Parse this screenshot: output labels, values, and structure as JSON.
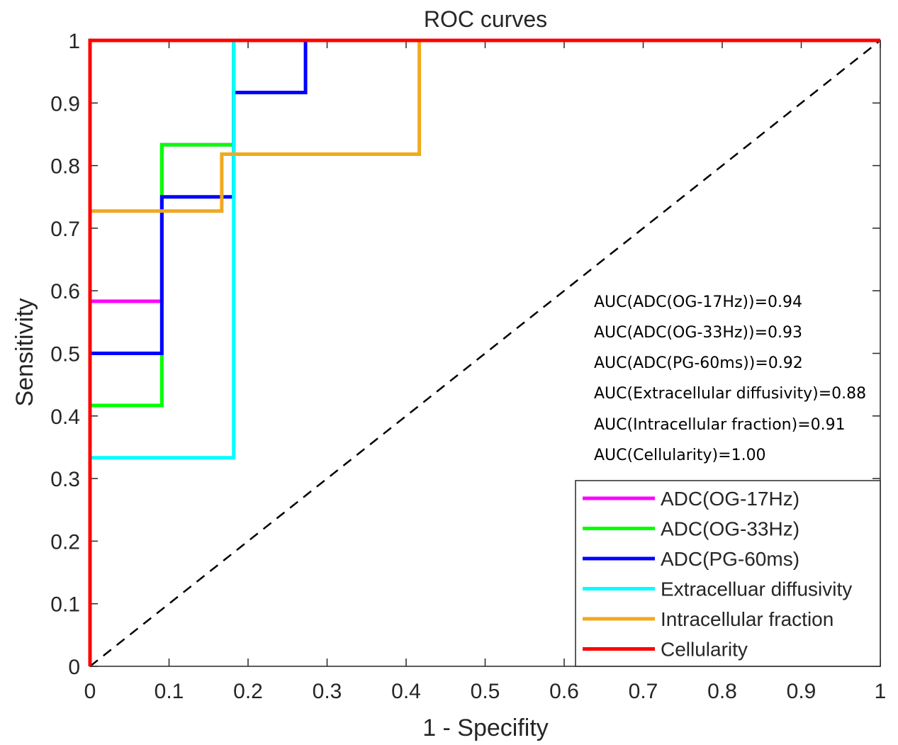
{
  "chart_data": {
    "type": "line",
    "title": "ROC curves",
    "xlabel": "1 - Specifity",
    "ylabel": "Sensitivity",
    "xlim": [
      0,
      1
    ],
    "ylim": [
      0,
      1
    ],
    "xticks": [
      "0",
      "0.1",
      "0.2",
      "0.3",
      "0.4",
      "0.5",
      "0.6",
      "0.7",
      "0.8",
      "0.9",
      "1"
    ],
    "yticks": [
      "0",
      "0.1",
      "0.2",
      "0.3",
      "0.4",
      "0.5",
      "0.6",
      "0.7",
      "0.8",
      "0.9",
      "1"
    ],
    "grid": false,
    "legend_position": "bottom-right",
    "series": [
      {
        "name": "ADC(OG-17Hz)",
        "color": "#ff00ff",
        "x": [
          0,
          0,
          0.0909,
          0.0909,
          0.1818,
          0.1818,
          1
        ],
        "y": [
          0,
          0.5833,
          0.5833,
          0.8333,
          0.8333,
          1,
          1
        ]
      },
      {
        "name": "ADC(OG-33Hz)",
        "color": "#00ff00",
        "x": [
          0,
          0,
          0.0909,
          0.0909,
          0.1818,
          0.1818,
          1
        ],
        "y": [
          0,
          0.4167,
          0.4167,
          0.8333,
          0.8333,
          1,
          1
        ]
      },
      {
        "name": "ADC(PG-60ms)",
        "color": "#0000ff",
        "x": [
          0,
          0,
          0.0909,
          0.0909,
          0.1818,
          0.1818,
          0.2727,
          0.2727,
          1
        ],
        "y": [
          0,
          0.5,
          0.5,
          0.75,
          0.75,
          0.9167,
          0.9167,
          1,
          1
        ]
      },
      {
        "name": "Extracelluar diffusivity",
        "color": "#00ffff",
        "x": [
          0,
          0,
          0.1818,
          0.1818,
          1
        ],
        "y": [
          0,
          0.3333,
          0.3333,
          1,
          1
        ]
      },
      {
        "name": "Intracellular fraction",
        "color": "#f0a920",
        "x": [
          0,
          0,
          0.1667,
          0.1667,
          0.4167,
          0.4167,
          1
        ],
        "y": [
          0,
          0.7273,
          0.7273,
          0.8182,
          0.8182,
          1,
          1
        ]
      },
      {
        "name": "Cellularity",
        "color": "#ff0000",
        "x": [
          0,
          0,
          1
        ],
        "y": [
          0,
          1,
          1
        ]
      }
    ],
    "diagonal": {
      "name": "chance-line",
      "color": "#000000",
      "x": [
        0,
        1
      ],
      "y": [
        0,
        1
      ]
    },
    "annotations": [
      "AUC(ADC(OG-17Hz))=0.94",
      "AUC(ADC(OG-33Hz))=0.93",
      "AUC(ADC(PG-60ms))=0.92",
      "AUC(Extracellular diffusivity)=0.88",
      "AUC(Intracellular fraction)=0.91",
      "AUC(Cellularity)=1.00"
    ]
  }
}
